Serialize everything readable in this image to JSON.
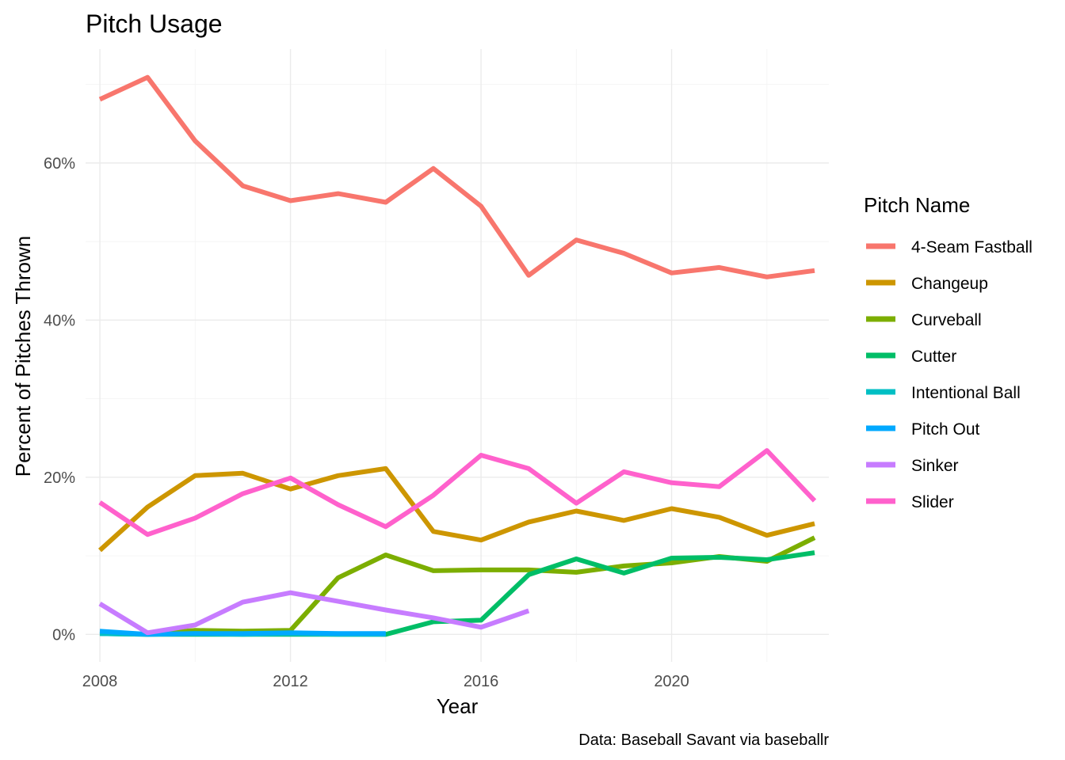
{
  "chart_data": {
    "type": "line",
    "title": "Pitch Usage",
    "xlabel": "Year",
    "ylabel": "Percent of Pitches Thrown",
    "caption": "Data: Baseball Savant via baseballr",
    "legend_title": "Pitch Name",
    "legend_position": "right",
    "grid": true,
    "xlim": [
      2007.7,
      2023.3
    ],
    "ylim": [
      -3.5,
      74.5
    ],
    "x_ticks": [
      2008,
      2012,
      2016,
      2020
    ],
    "x_tick_labels": [
      "2008",
      "2012",
      "2016",
      "2020"
    ],
    "y_ticks": [
      0,
      20,
      40,
      60
    ],
    "y_tick_labels": [
      "0%",
      "20%",
      "40%",
      "60%"
    ],
    "series": [
      {
        "name": "4-Seam Fastball",
        "color": "#F8766D",
        "x": [
          2008,
          2009,
          2010,
          2011,
          2012,
          2013,
          2014,
          2015,
          2016,
          2017,
          2018,
          2019,
          2020,
          2021,
          2022,
          2023
        ],
        "values": [
          68.1,
          70.9,
          62.8,
          57.1,
          55.2,
          56.1,
          55.0,
          59.3,
          54.5,
          45.7,
          50.2,
          48.5,
          46.0,
          46.7,
          45.5,
          46.3
        ]
      },
      {
        "name": "Changeup",
        "color": "#CD9600",
        "x": [
          2008,
          2009,
          2010,
          2011,
          2012,
          2013,
          2014,
          2015,
          2016,
          2017,
          2018,
          2019,
          2020,
          2021,
          2022,
          2023
        ],
        "values": [
          10.7,
          16.2,
          20.2,
          20.5,
          18.5,
          20.2,
          21.1,
          13.1,
          12.0,
          14.3,
          15.7,
          14.5,
          16.0,
          14.9,
          12.6,
          14.1
        ]
      },
      {
        "name": "Curveball",
        "color": "#7CAE00",
        "x": [
          2008,
          2009,
          2010,
          2011,
          2012,
          2013,
          2014,
          2015,
          2016,
          2017,
          2018,
          2019,
          2020,
          2021,
          2022,
          2023
        ],
        "values": [
          0.2,
          0.0,
          0.5,
          0.4,
          0.5,
          7.2,
          10.1,
          8.1,
          8.2,
          8.2,
          7.9,
          8.7,
          9.1,
          9.9,
          9.3,
          12.3
        ]
      },
      {
        "name": "Cutter",
        "color": "#00BE67",
        "x": [
          2008,
          2009,
          2010,
          2011,
          2012,
          2013,
          2014,
          2015,
          2016,
          2017,
          2018,
          2019,
          2020,
          2021,
          2022,
          2023
        ],
        "values": [
          0.1,
          0.0,
          0.0,
          0.0,
          0.0,
          0.0,
          0.0,
          1.6,
          1.8,
          7.6,
          9.6,
          7.8,
          9.7,
          9.8,
          9.5,
          10.4
        ]
      },
      {
        "name": "Intentional Ball",
        "color": "#00BFC4",
        "x": [
          2008,
          2009,
          2010,
          2011,
          2012,
          2013,
          2014
        ],
        "values": [
          0.1,
          0.0,
          0.1,
          0.0,
          0.1,
          0.0,
          0.0
        ]
      },
      {
        "name": "Pitch Out",
        "color": "#00A9FF",
        "x": [
          2008,
          2009,
          2010,
          2011,
          2012,
          2013,
          2014
        ],
        "values": [
          0.4,
          0.0,
          0.1,
          0.1,
          0.2,
          0.1,
          0.1
        ]
      },
      {
        "name": "Sinker",
        "color": "#C77CFF",
        "x": [
          2008,
          2009,
          2010,
          2011,
          2012,
          2013,
          2014,
          2015,
          2016,
          2017
        ],
        "values": [
          3.9,
          0.2,
          1.2,
          4.1,
          5.3,
          4.2,
          3.1,
          2.1,
          0.9,
          3.0
        ]
      },
      {
        "name": "Slider",
        "color": "#FF61CC",
        "x": [
          2008,
          2009,
          2010,
          2011,
          2012,
          2013,
          2014,
          2015,
          2016,
          2017,
          2018,
          2019,
          2020,
          2021,
          2022,
          2023
        ],
        "values": [
          16.8,
          12.7,
          14.8,
          17.9,
          19.9,
          16.5,
          13.7,
          17.7,
          22.8,
          21.1,
          16.7,
          20.7,
          19.3,
          18.8,
          23.4,
          17.0
        ]
      }
    ]
  }
}
